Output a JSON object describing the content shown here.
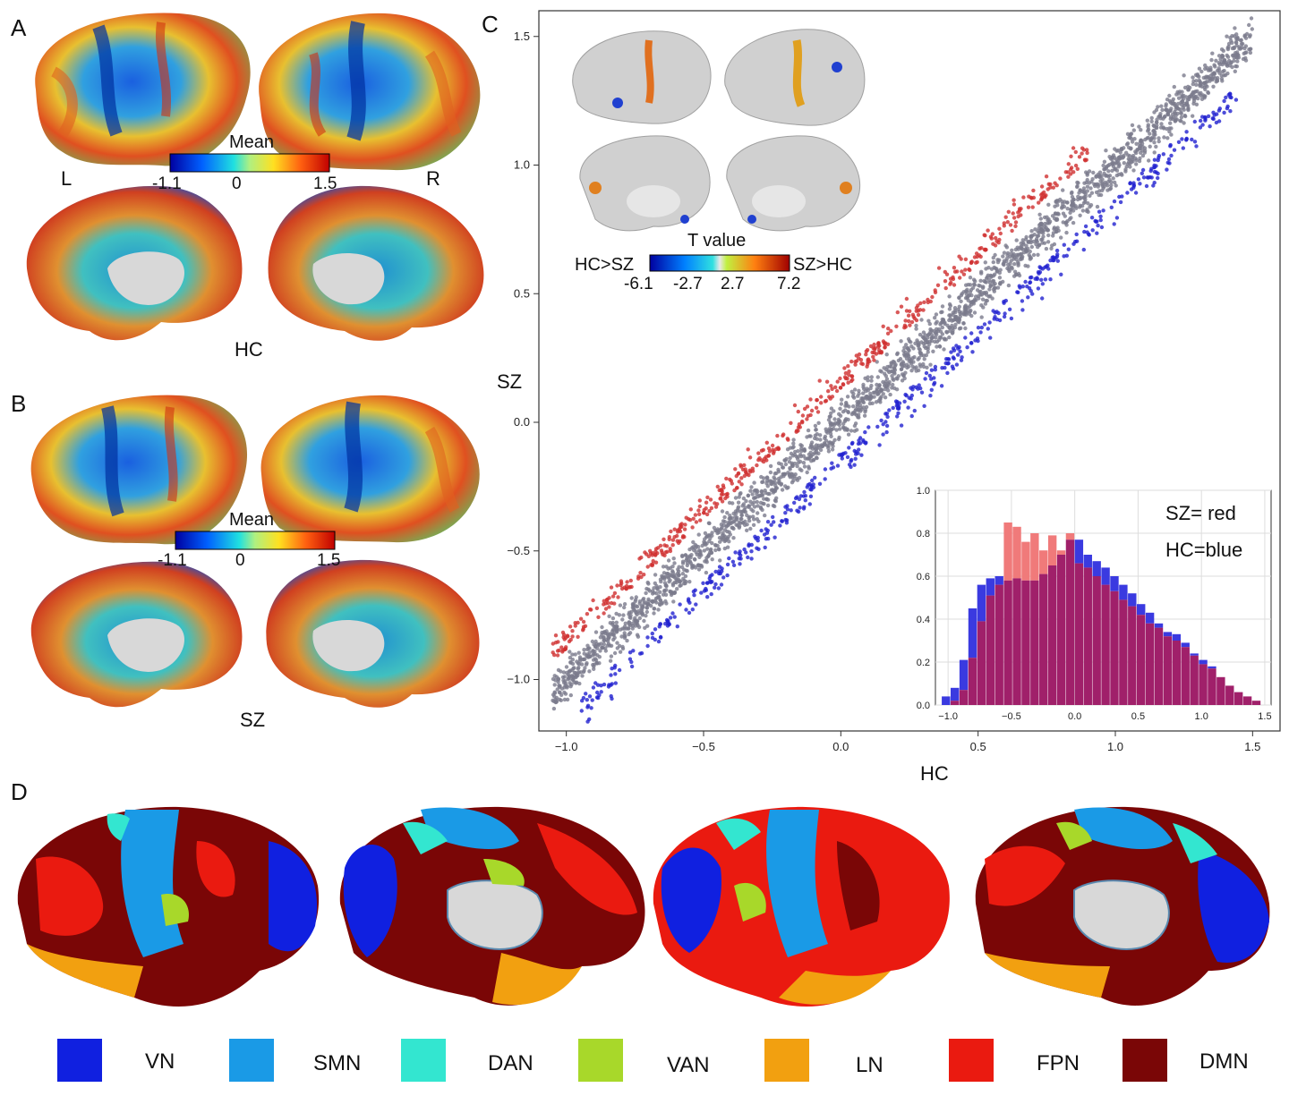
{
  "panels": {
    "A": {
      "letter": "A",
      "left_label": "L",
      "right_label": "R",
      "group_label": "HC",
      "colorbar": {
        "title": "Mean",
        "ticks": [
          "-1.1",
          "0",
          "1.5"
        ]
      }
    },
    "B": {
      "letter": "B",
      "group_label": "SZ",
      "colorbar": {
        "title": "Mean",
        "ticks": [
          "-1.1",
          "0",
          "1.5"
        ]
      }
    },
    "C": {
      "letter": "C",
      "inset_colorbar": {
        "title": "T value",
        "left_label": "HC>SZ",
        "right_label": "SZ>HC",
        "ticks": [
          "-6.1",
          "-2.7",
          "2.7",
          "7.2"
        ]
      },
      "histogram_legend": [
        "SZ= red",
        "HC=blue"
      ]
    },
    "D": {
      "letter": "D",
      "networks": [
        {
          "label": "VN",
          "color": "#1020e0"
        },
        {
          "label": "SMN",
          "color": "#1a9ae6"
        },
        {
          "label": "DAN",
          "color": "#33e6d0"
        },
        {
          "label": "VAN",
          "color": "#a8d82a"
        },
        {
          "label": "LN",
          "color": "#f2a010"
        },
        {
          "label": "FPN",
          "color": "#ea1a10"
        },
        {
          "label": "DMN",
          "color": "#7a0606"
        }
      ]
    }
  },
  "colors": {
    "sz": "#d03030",
    "hc": "#2020d0",
    "neutral": "#7a7a8c",
    "hist_sz": "#f07a7a",
    "hist_hc": "#3a3ae0",
    "hist_overlap": "#a0206a"
  },
  "chart_data": [
    {
      "type": "scatter",
      "title": "",
      "xlabel": "HC",
      "ylabel": "SZ",
      "xlim": [
        -1.1,
        1.6
      ],
      "ylim": [
        -1.2,
        1.6
      ],
      "xticks": [
        "−1.0",
        "−0.5",
        "0.0",
        "0.5",
        "1.0",
        "1.5"
      ],
      "yticks": [
        "−1.0",
        "−0.5",
        "0.0",
        "0.5",
        "1.0",
        "1.5"
      ],
      "grid": false,
      "series": [
        {
          "name": "",
          "color": "#d03030",
          "band": "above",
          "x_range": [
            -1.05,
            0.9
          ],
          "offset": 0.17
        },
        {
          "name": "",
          "color": "#7a7a8c",
          "band": "center",
          "x_range": [
            -1.05,
            1.5
          ],
          "offset": 0.0
        },
        {
          "name": "",
          "color": "#2020d0",
          "band": "below",
          "x_range": [
            -0.95,
            1.45
          ],
          "offset": -0.17
        }
      ]
    },
    {
      "type": "bar",
      "title": "",
      "xlim": [
        -1.1,
        1.55
      ],
      "ylim": [
        0,
        1.0
      ],
      "xticks": [
        "−1.0",
        "−0.5",
        "0.0",
        "0.5",
        "1.0",
        "1.5"
      ],
      "yticks": [
        "0.0",
        "0.2",
        "0.4",
        "0.6",
        "0.8",
        "1.0"
      ],
      "grid": true,
      "legend": "top-right",
      "bin_edges": [
        -1.05,
        -0.98,
        -0.91,
        -0.84,
        -0.77,
        -0.7,
        -0.63,
        -0.56,
        -0.49,
        -0.42,
        -0.35,
        -0.28,
        -0.21,
        -0.14,
        -0.07,
        0.0,
        0.07,
        0.14,
        0.21,
        0.28,
        0.35,
        0.42,
        0.49,
        0.56,
        0.63,
        0.7,
        0.77,
        0.84,
        0.91,
        0.98,
        1.05,
        1.12,
        1.19,
        1.26,
        1.33,
        1.4,
        1.47
      ],
      "series": [
        {
          "name": "SZ= red",
          "values": [
            0.0,
            0.02,
            0.07,
            0.22,
            0.39,
            0.51,
            0.56,
            0.85,
            0.83,
            0.76,
            0.8,
            0.72,
            0.79,
            0.72,
            0.8,
            0.66,
            0.64,
            0.6,
            0.56,
            0.53,
            0.49,
            0.46,
            0.42,
            0.38,
            0.36,
            0.32,
            0.3,
            0.27,
            0.23,
            0.19,
            0.17,
            0.13,
            0.09,
            0.06,
            0.04,
            0.02
          ]
        },
        {
          "name": "HC=blue",
          "values": [
            0.04,
            0.08,
            0.21,
            0.45,
            0.56,
            0.59,
            0.6,
            0.58,
            0.59,
            0.58,
            0.58,
            0.61,
            0.65,
            0.7,
            0.77,
            0.77,
            0.7,
            0.67,
            0.64,
            0.6,
            0.56,
            0.52,
            0.47,
            0.43,
            0.38,
            0.34,
            0.33,
            0.29,
            0.24,
            0.21,
            0.18,
            0.13,
            0.09,
            0.06,
            0.04,
            0.02
          ]
        }
      ]
    }
  ]
}
